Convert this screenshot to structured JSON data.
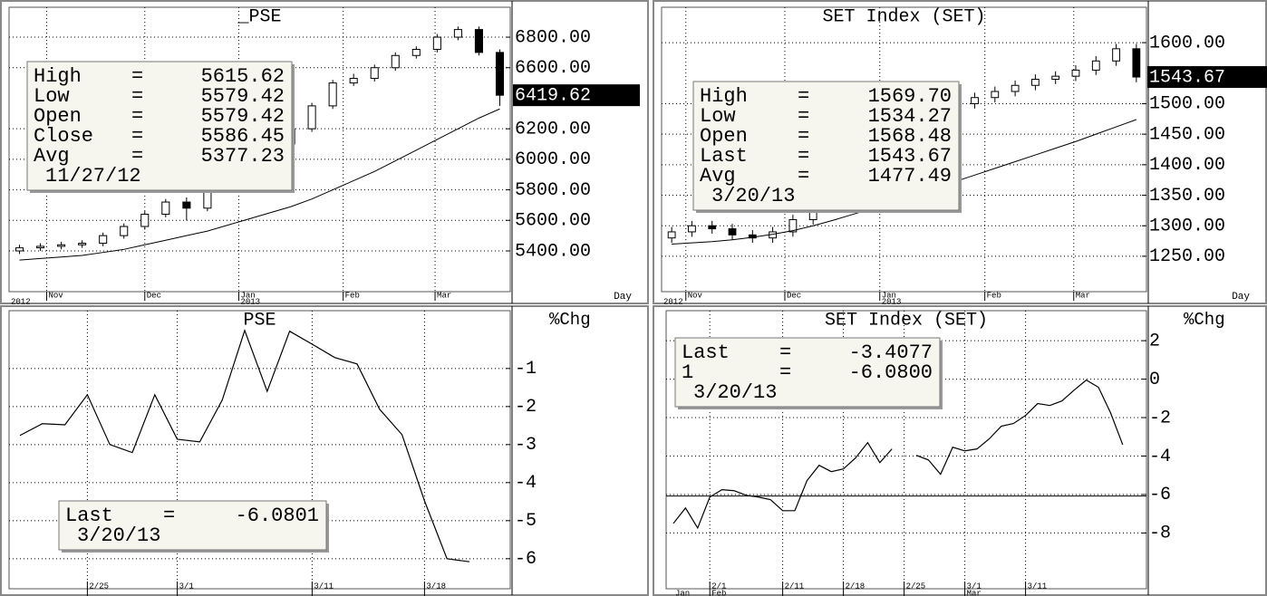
{
  "chart_data": [
    {
      "type": "candlestick",
      "title": "_PSE",
      "x_label": "Day",
      "color": "#000000",
      "grid": true,
      "xlim": [
        0,
        24
      ],
      "x": [
        0.5,
        1.5,
        2.5,
        3.5,
        4.5,
        5.5,
        6.5,
        7.5,
        8.5,
        9.5,
        10.5,
        11.5,
        12.5,
        13.5,
        14.5,
        15.5,
        16.5,
        17.5,
        18.5,
        19.5,
        20.5,
        21.5,
        22.5,
        23.5
      ],
      "open": [
        5400,
        5420,
        5430,
        5440,
        5450,
        5500,
        5560,
        5640,
        5720,
        5680,
        5800,
        5900,
        6050,
        6100,
        6200,
        6350,
        6500,
        6530,
        6600,
        6680,
        6720,
        6800,
        6850,
        6700
      ],
      "high": [
        5440,
        5450,
        5460,
        5470,
        5520,
        5580,
        5660,
        5740,
        5750,
        5820,
        5920,
        6070,
        6120,
        6220,
        6370,
        6520,
        6560,
        6620,
        6700,
        6740,
        6820,
        6870,
        6870,
        6720
      ],
      "low": [
        5380,
        5400,
        5410,
        5420,
        5430,
        5480,
        5540,
        5620,
        5600,
        5660,
        5780,
        5880,
        6030,
        6080,
        6180,
        6330,
        6480,
        6510,
        6580,
        6660,
        6700,
        6780,
        6680,
        6350
      ],
      "close": [
        5420,
        5430,
        5440,
        5450,
        5500,
        5560,
        5640,
        5720,
        5680,
        5800,
        5900,
        6050,
        6100,
        6200,
        6350,
        6500,
        6530,
        6600,
        6680,
        6720,
        6800,
        6850,
        6700,
        6419.62
      ],
      "average": [
        5340,
        5350,
        5360,
        5370,
        5390,
        5410,
        5440,
        5470,
        5500,
        5530,
        5570,
        5610,
        5650,
        5690,
        5740,
        5800,
        5860,
        5920,
        5990,
        6060,
        6130,
        6200,
        6270,
        6330
      ],
      "ylim": [
        5133,
        6996
      ],
      "yticks": [
        {
          "value": 5400,
          "label": "5400.00"
        },
        {
          "value": 5600,
          "label": "5600.00"
        },
        {
          "value": 5800,
          "label": "5800.00"
        },
        {
          "value": 6000,
          "label": "6000.00"
        },
        {
          "value": 6200,
          "label": "6200.00"
        },
        {
          "value": 6600,
          "label": "6600.00"
        },
        {
          "value": 6800,
          "label": "6800.00"
        }
      ],
      "xticks": [
        {
          "value": 1.8,
          "label": "Nov"
        },
        {
          "value": 6.5,
          "label": "Dec"
        },
        {
          "value": 11,
          "label": "Jan"
        },
        {
          "value": 16,
          "label": "Feb"
        },
        {
          "value": 20.4,
          "label": "Mar"
        }
      ],
      "x_groups": [
        {
          "value": 0,
          "label": "2012"
        },
        {
          "value": 11,
          "label": "2013"
        }
      ],
      "info": {
        "separator": "=",
        "rows": [
          {
            "label": "High",
            "value": 5615.62
          },
          {
            "label": "Low",
            "value": 5579.42
          },
          {
            "label": "Open",
            "value": 5579.42
          },
          {
            "label": "Close",
            "value": 5586.45
          },
          {
            "label": "Avg",
            "value": 5377.23
          }
        ],
        "date": "11/27/12"
      }
    },
    {
      "type": "candlestick",
      "title": "SET Index (SET)",
      "x_label": "Day",
      "color": "#000000",
      "grid": true,
      "xlim": [
        0,
        24
      ],
      "x": [
        0.5,
        1.5,
        2.5,
        3.5,
        4.5,
        5.5,
        6.5,
        7.5,
        8.5,
        9.5,
        10.5,
        11.5,
        12.5,
        13.5,
        14.5,
        15.5,
        16.5,
        17.5,
        18.5,
        19.5,
        20.5,
        21.5,
        22.5,
        23.5
      ],
      "open": [
        1280,
        1290,
        1300,
        1295,
        1285,
        1280,
        1290,
        1310,
        1340,
        1360,
        1390,
        1420,
        1440,
        1470,
        1490,
        1500,
        1510,
        1520,
        1530,
        1540,
        1545,
        1555,
        1570,
        1590
      ],
      "high": [
        1298,
        1308,
        1308,
        1303,
        1293,
        1298,
        1318,
        1348,
        1368,
        1398,
        1428,
        1448,
        1478,
        1498,
        1508,
        1518,
        1528,
        1538,
        1548,
        1553,
        1563,
        1578,
        1598,
        1598
      ],
      "low": [
        1272,
        1282,
        1287,
        1277,
        1272,
        1272,
        1282,
        1302,
        1332,
        1352,
        1382,
        1412,
        1432,
        1462,
        1482,
        1492,
        1502,
        1512,
        1522,
        1532,
        1537,
        1547,
        1562,
        1535
      ],
      "close": [
        1290,
        1300,
        1295,
        1285,
        1280,
        1290,
        1310,
        1340,
        1360,
        1390,
        1420,
        1440,
        1470,
        1490,
        1500,
        1510,
        1520,
        1530,
        1540,
        1545,
        1555,
        1570,
        1590,
        1543.67
      ],
      "average": [
        1270,
        1272,
        1274,
        1277,
        1281,
        1286,
        1292,
        1300,
        1309,
        1319,
        1329,
        1339,
        1350,
        1361,
        1372,
        1383,
        1394,
        1405,
        1416,
        1427,
        1438,
        1450,
        1462,
        1474
      ],
      "ylim": [
        1192,
        1658
      ],
      "yticks": [
        {
          "value": 1250,
          "label": "1250.00"
        },
        {
          "value": 1300,
          "label": "1300.00"
        },
        {
          "value": 1350,
          "label": "1350.00"
        },
        {
          "value": 1400,
          "label": "1400.00"
        },
        {
          "value": 1450,
          "label": "1450.00"
        },
        {
          "value": 1500,
          "label": "1500.00"
        },
        {
          "value": 1600,
          "label": "1600.00"
        }
      ],
      "xticks": [
        {
          "value": 1.2,
          "label": "Nov"
        },
        {
          "value": 6.1,
          "label": "Dec"
        },
        {
          "value": 10.8,
          "label": "Jan"
        },
        {
          "value": 16,
          "label": "Feb"
        },
        {
          "value": 20.4,
          "label": "Mar"
        }
      ],
      "x_groups": [
        {
          "value": 0,
          "label": "2012"
        },
        {
          "value": 10.8,
          "label": "2013"
        }
      ],
      "info": {
        "separator": "=",
        "rows": [
          {
            "label": "High",
            "value": {
              "value": 1569.7,
              "label": "1569.70"
            }
          },
          {
            "label": "Low",
            "value": 1534.27
          },
          {
            "label": "Open",
            "value": 1568.48
          },
          {
            "label": "Last",
            "value": 1543.67
          },
          {
            "label": "Avg",
            "value": 1477.49
          }
        ],
        "date": "3/20/13"
      }
    },
    {
      "type": "line",
      "title": "PSE",
      "y_label": "%Chg",
      "color": "#000000",
      "grid": true,
      "categories": [
        null,
        null,
        null,
        "2/25",
        null,
        null,
        null,
        "3/1",
        null,
        null,
        null,
        null,
        null,
        "3/11",
        null,
        null,
        null,
        null,
        "3/18",
        null,
        null
      ],
      "values": [
        -2.76,
        -2.45,
        -2.48,
        -1.69,
        -3.0,
        -3.21,
        -1.69,
        -2.86,
        -2.93,
        -1.83,
        0,
        -1.6,
        -0.02,
        -0.36,
        -0.71,
        -0.88,
        -2.07,
        -2.74,
        -4.48,
        -6.0,
        -6.0801
      ],
      "ylim": [
        -6.79,
        0.52
      ],
      "yticks": [
        -6,
        -5,
        -4,
        -3,
        -2,
        -1
      ],
      "info": {
        "separator": "=",
        "rows": [
          {
            "label": "Last",
            "value": -6.0801
          }
        ],
        "date": "3/20/13"
      }
    },
    {
      "type": "line",
      "title": "SET Index (SET)",
      "y_label": "%Chg",
      "color": "#000000",
      "grid": true,
      "categories": [
        null,
        null,
        null,
        "2/1",
        null,
        null,
        null,
        null,
        null,
        "2/11",
        null,
        null,
        null,
        null,
        "2/18",
        null,
        null,
        null,
        null,
        "2/25",
        null,
        null,
        null,
        null,
        "3/1",
        null,
        null,
        null,
        null,
        "3/11",
        null,
        null,
        null,
        null,
        null,
        null,
        null,
        null
      ],
      "x_groups": [
        {
          "value": 0,
          "label": "Jan"
        },
        {
          "value": 3,
          "label": "Feb"
        },
        {
          "value": 24,
          "label": "Mar"
        }
      ],
      "values": [
        -7.5,
        -6.7,
        -7.74,
        -6.13,
        -5.75,
        -5.8,
        -6.04,
        -6.13,
        -6.27,
        -6.84,
        -6.84,
        -5.28,
        -4.48,
        -4.81,
        -4.67,
        -4.1,
        -3.3,
        -4.34,
        -3.63,
        null,
        -3.96,
        -4.2,
        -4.95,
        -3.54,
        -3.73,
        -3.63,
        -3.11,
        -2.45,
        -2.31,
        -1.89,
        -1.27,
        -1.37,
        -1.13,
        -0.57,
        -0.05,
        -0.42,
        -1.75,
        -3.4077
      ],
      "reference_line": -6.08,
      "ylim": [
        -10.9,
        3.56
      ],
      "yticks": [
        -8,
        -6,
        -4,
        -2,
        0,
        2
      ],
      "info": {
        "separator": "=",
        "rows": [
          {
            "label": "Last",
            "value": -3.4077
          },
          {
            "label": "1",
            "value": {
              "value": -6.08,
              "label": "-6.0800"
            }
          }
        ],
        "date": "3/20/13"
      }
    }
  ]
}
